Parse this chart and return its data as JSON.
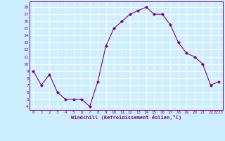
{
  "x": [
    0,
    1,
    2,
    3,
    4,
    5,
    6,
    7,
    8,
    9,
    10,
    11,
    12,
    13,
    14,
    15,
    16,
    17,
    18,
    19,
    20,
    21,
    22,
    23
  ],
  "y": [
    9.0,
    7.0,
    8.5,
    6.0,
    5.0,
    5.0,
    5.0,
    4.0,
    7.5,
    12.5,
    15.0,
    16.0,
    17.0,
    17.5,
    18.0,
    17.0,
    17.0,
    15.5,
    13.0,
    11.5,
    11.0,
    10.0,
    7.0,
    7.5
  ],
  "line_color": "#800080",
  "marker": "D",
  "marker_size": 2,
  "bg_color": "#cceeff",
  "grid_color": "#ffffff",
  "xlabel": "Windchill (Refroidissement éolien,°C)",
  "xlabel_color": "#800080",
  "tick_color": "#800080",
  "ylim": [
    3.5,
    18.8
  ],
  "xlim": [
    -0.5,
    23.5
  ],
  "yticks": [
    4,
    5,
    6,
    7,
    8,
    9,
    10,
    11,
    12,
    13,
    14,
    15,
    16,
    17,
    18
  ],
  "xticks": [
    0,
    1,
    2,
    3,
    4,
    5,
    6,
    7,
    8,
    9,
    10,
    11,
    12,
    13,
    14,
    15,
    16,
    17,
    18,
    19,
    20,
    21,
    22,
    23
  ],
  "figsize": [
    3.2,
    2.0
  ],
  "dpi": 100
}
